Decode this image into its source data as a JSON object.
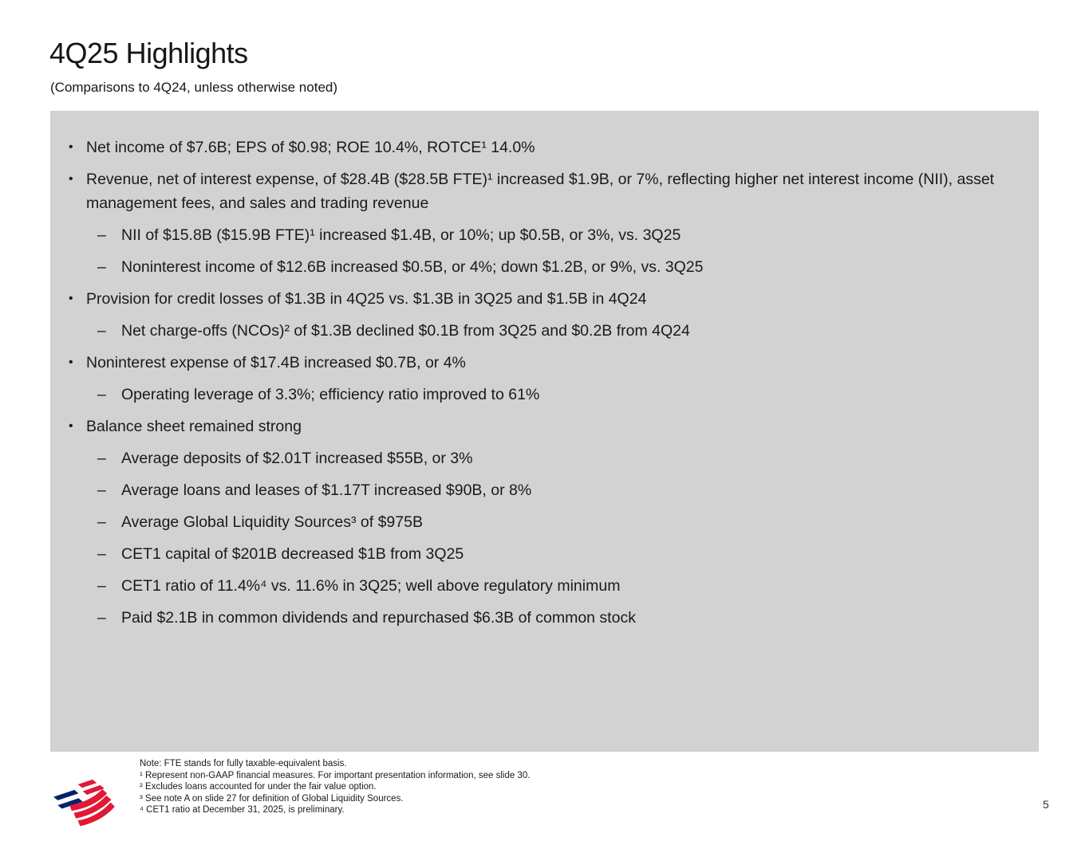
{
  "slide": {
    "title": "4Q25 Highlights",
    "subtitle": "(Comparisons to 4Q24, unless otherwise noted)",
    "page_number": "5"
  },
  "content": {
    "marker_level1": "•",
    "marker_level2": "–",
    "bullets": [
      {
        "level": 1,
        "text": "Net income of $7.6B; EPS of $0.98; ROE 10.4%, ROTCE¹ 14.0%"
      },
      {
        "level": 1,
        "text": "Revenue, net of interest expense, of $28.4B ($28.5B FTE)¹ increased $1.9B, or 7%, reflecting higher net interest income (NII), asset management fees, and sales and trading revenue"
      },
      {
        "level": 2,
        "text": "NII of $15.8B ($15.9B FTE)¹ increased $1.4B, or 10%; up $0.5B, or 3%, vs. 3Q25"
      },
      {
        "level": 2,
        "text": "Noninterest income of $12.6B increased $0.5B, or 4%; down $1.2B, or 9%, vs. 3Q25"
      },
      {
        "level": 1,
        "text": "Provision for credit losses of $1.3B in 4Q25 vs. $1.3B in 3Q25 and $1.5B in 4Q24"
      },
      {
        "level": 2,
        "text": "Net charge-offs (NCOs)² of $1.3B declined $0.1B from 3Q25 and $0.2B from 4Q24"
      },
      {
        "level": 1,
        "text": "Noninterest expense of $17.4B increased $0.7B, or 4%"
      },
      {
        "level": 2,
        "text": "Operating leverage of 3.3%; efficiency ratio improved to 61%"
      },
      {
        "level": 1,
        "text": "Balance sheet remained strong"
      },
      {
        "level": 2,
        "text": "Average deposits of $2.01T increased $55B, or 3%"
      },
      {
        "level": 2,
        "text": "Average loans and leases of $1.17T increased $90B, or 8%"
      },
      {
        "level": 2,
        "text": "Average Global Liquidity Sources³ of $975B"
      },
      {
        "level": 2,
        "text": "CET1 capital of $201B decreased $1B from 3Q25"
      },
      {
        "level": 2,
        "text": "CET1 ratio of 11.4%⁴ vs. 11.6% in 3Q25; well above regulatory minimum"
      },
      {
        "level": 2,
        "text": "Paid $2.1B in common dividends and repurchased $6.3B of common stock"
      }
    ]
  },
  "footnotes": {
    "lines": [
      "Note: FTE stands for fully taxable-equivalent basis.",
      "¹ Represent non-GAAP financial measures. For important presentation information, see slide 30.",
      "² Excludes loans accounted for under the fair value option.",
      "³ See note A on slide 27 for definition of Global Liquidity Sources.",
      "⁴ CET1 ratio at December 31, 2025, is preliminary."
    ]
  },
  "branding": {
    "logo_name": "bank-of-america-flag-logo",
    "registered_mark": "®",
    "logo_blue": "#012169",
    "logo_red": "#e31837"
  },
  "colors": {
    "panel_bg": "#d2d2d2",
    "text": "#1a1a1a"
  }
}
